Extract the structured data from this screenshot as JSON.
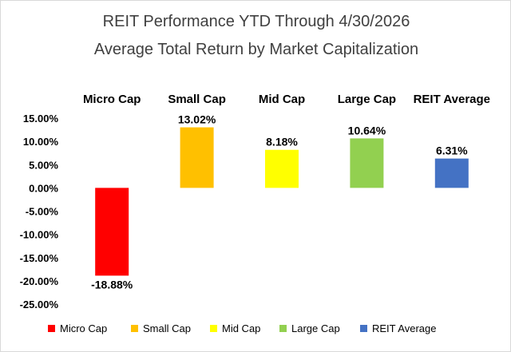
{
  "chart_data": {
    "type": "bar",
    "title": "REIT Performance YTD Through 4/30/2026",
    "subtitle": "Average Total Return by Market Capitalization",
    "categories": [
      "Micro Cap",
      "Small Cap",
      "Mid Cap",
      "Large Cap",
      "REIT Average"
    ],
    "values": [
      -18.88,
      13.02,
      8.18,
      10.64,
      6.31
    ],
    "value_labels": [
      "-18.88%",
      "13.02%",
      "8.18%",
      "10.64%",
      "6.31%"
    ],
    "colors": [
      "#ff0000",
      "#ffc000",
      "#ffff00",
      "#92d050",
      "#4472c4"
    ],
    "ylim": [
      -25,
      15
    ],
    "yticks": [
      15,
      10,
      5,
      0,
      -5,
      -10,
      -15,
      -20,
      -25
    ],
    "ytick_labels": [
      "15.00%",
      "10.00%",
      "5.00%",
      "0.00%",
      "-5.00%",
      "-10.00%",
      "-15.00%",
      "-20.00%",
      "-25.00%"
    ],
    "xlabel": "",
    "ylabel": "",
    "grid": false,
    "category_label_position": "top",
    "legend": {
      "position": "bottom",
      "entries": [
        "Micro Cap",
        "Small Cap",
        "Mid Cap",
        "Large Cap",
        "REIT Average"
      ]
    }
  }
}
